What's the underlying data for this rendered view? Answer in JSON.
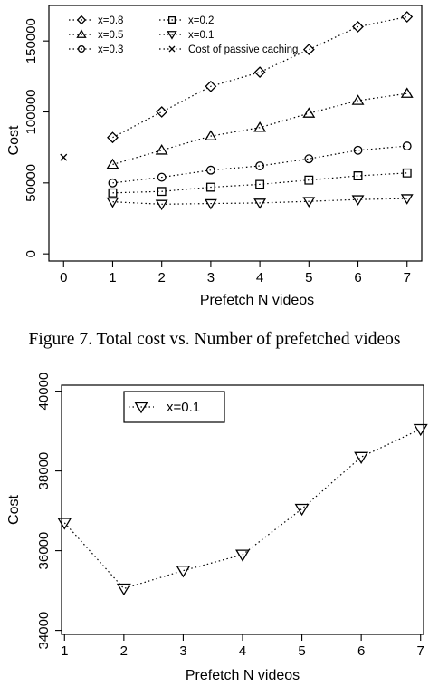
{
  "caption": "Figure 7. Total cost vs. Number of prefetched videos",
  "chart_data": [
    {
      "type": "line",
      "title": "",
      "xlabel": "Prefetch N videos",
      "ylabel": "Cost",
      "x_ticks": [
        "0",
        "1",
        "2",
        "3",
        "4",
        "5",
        "6",
        "7"
      ],
      "y_ticks": [
        "0",
        "50000",
        "100000",
        "150000"
      ],
      "xlim": [
        -0.3,
        7.3
      ],
      "ylim": [
        -5000,
        175000
      ],
      "grid": false,
      "legend_position": "top-left",
      "categories": [
        1,
        2,
        3,
        4,
        5,
        6,
        7
      ],
      "series": [
        {
          "name": "x=0.8",
          "marker": "diamond",
          "values": [
            82000,
            100000,
            118000,
            128000,
            144000,
            160000,
            167000
          ]
        },
        {
          "name": "x=0.5",
          "marker": "triangle-up",
          "values": [
            63000,
            73000,
            83000,
            89000,
            99000,
            108000,
            113000
          ]
        },
        {
          "name": "x=0.3",
          "marker": "circle",
          "values": [
            50000,
            54000,
            59000,
            62000,
            67000,
            73000,
            76000
          ]
        },
        {
          "name": "x=0.2",
          "marker": "square",
          "values": [
            43000,
            44000,
            47000,
            49000,
            52000,
            55000,
            57000
          ]
        },
        {
          "name": "x=0.1",
          "marker": "triangle-down",
          "values": [
            36700,
            35000,
            35500,
            35900,
            37000,
            38300,
            39000
          ]
        }
      ],
      "passive_caching": {
        "name": "Cost of passive caching",
        "marker": "cross",
        "x": 0,
        "value": 68000
      }
    },
    {
      "type": "line",
      "title": "",
      "xlabel": "Prefetch N videos",
      "ylabel": "Cost",
      "x_ticks": [
        "1",
        "2",
        "3",
        "4",
        "5",
        "6",
        "7"
      ],
      "y_ticks": [
        "34000",
        "36000",
        "38000",
        "40000"
      ],
      "xlim": [
        0.95,
        7.05
      ],
      "ylim": [
        33900,
        40150
      ],
      "grid": false,
      "legend_position": "top-left",
      "categories": [
        1,
        2,
        3,
        4,
        5,
        6,
        7
      ],
      "series": [
        {
          "name": "x=0.1",
          "marker": "triangle-down",
          "values": [
            36700,
            35050,
            35500,
            35900,
            37050,
            38350,
            39050
          ]
        }
      ]
    }
  ]
}
